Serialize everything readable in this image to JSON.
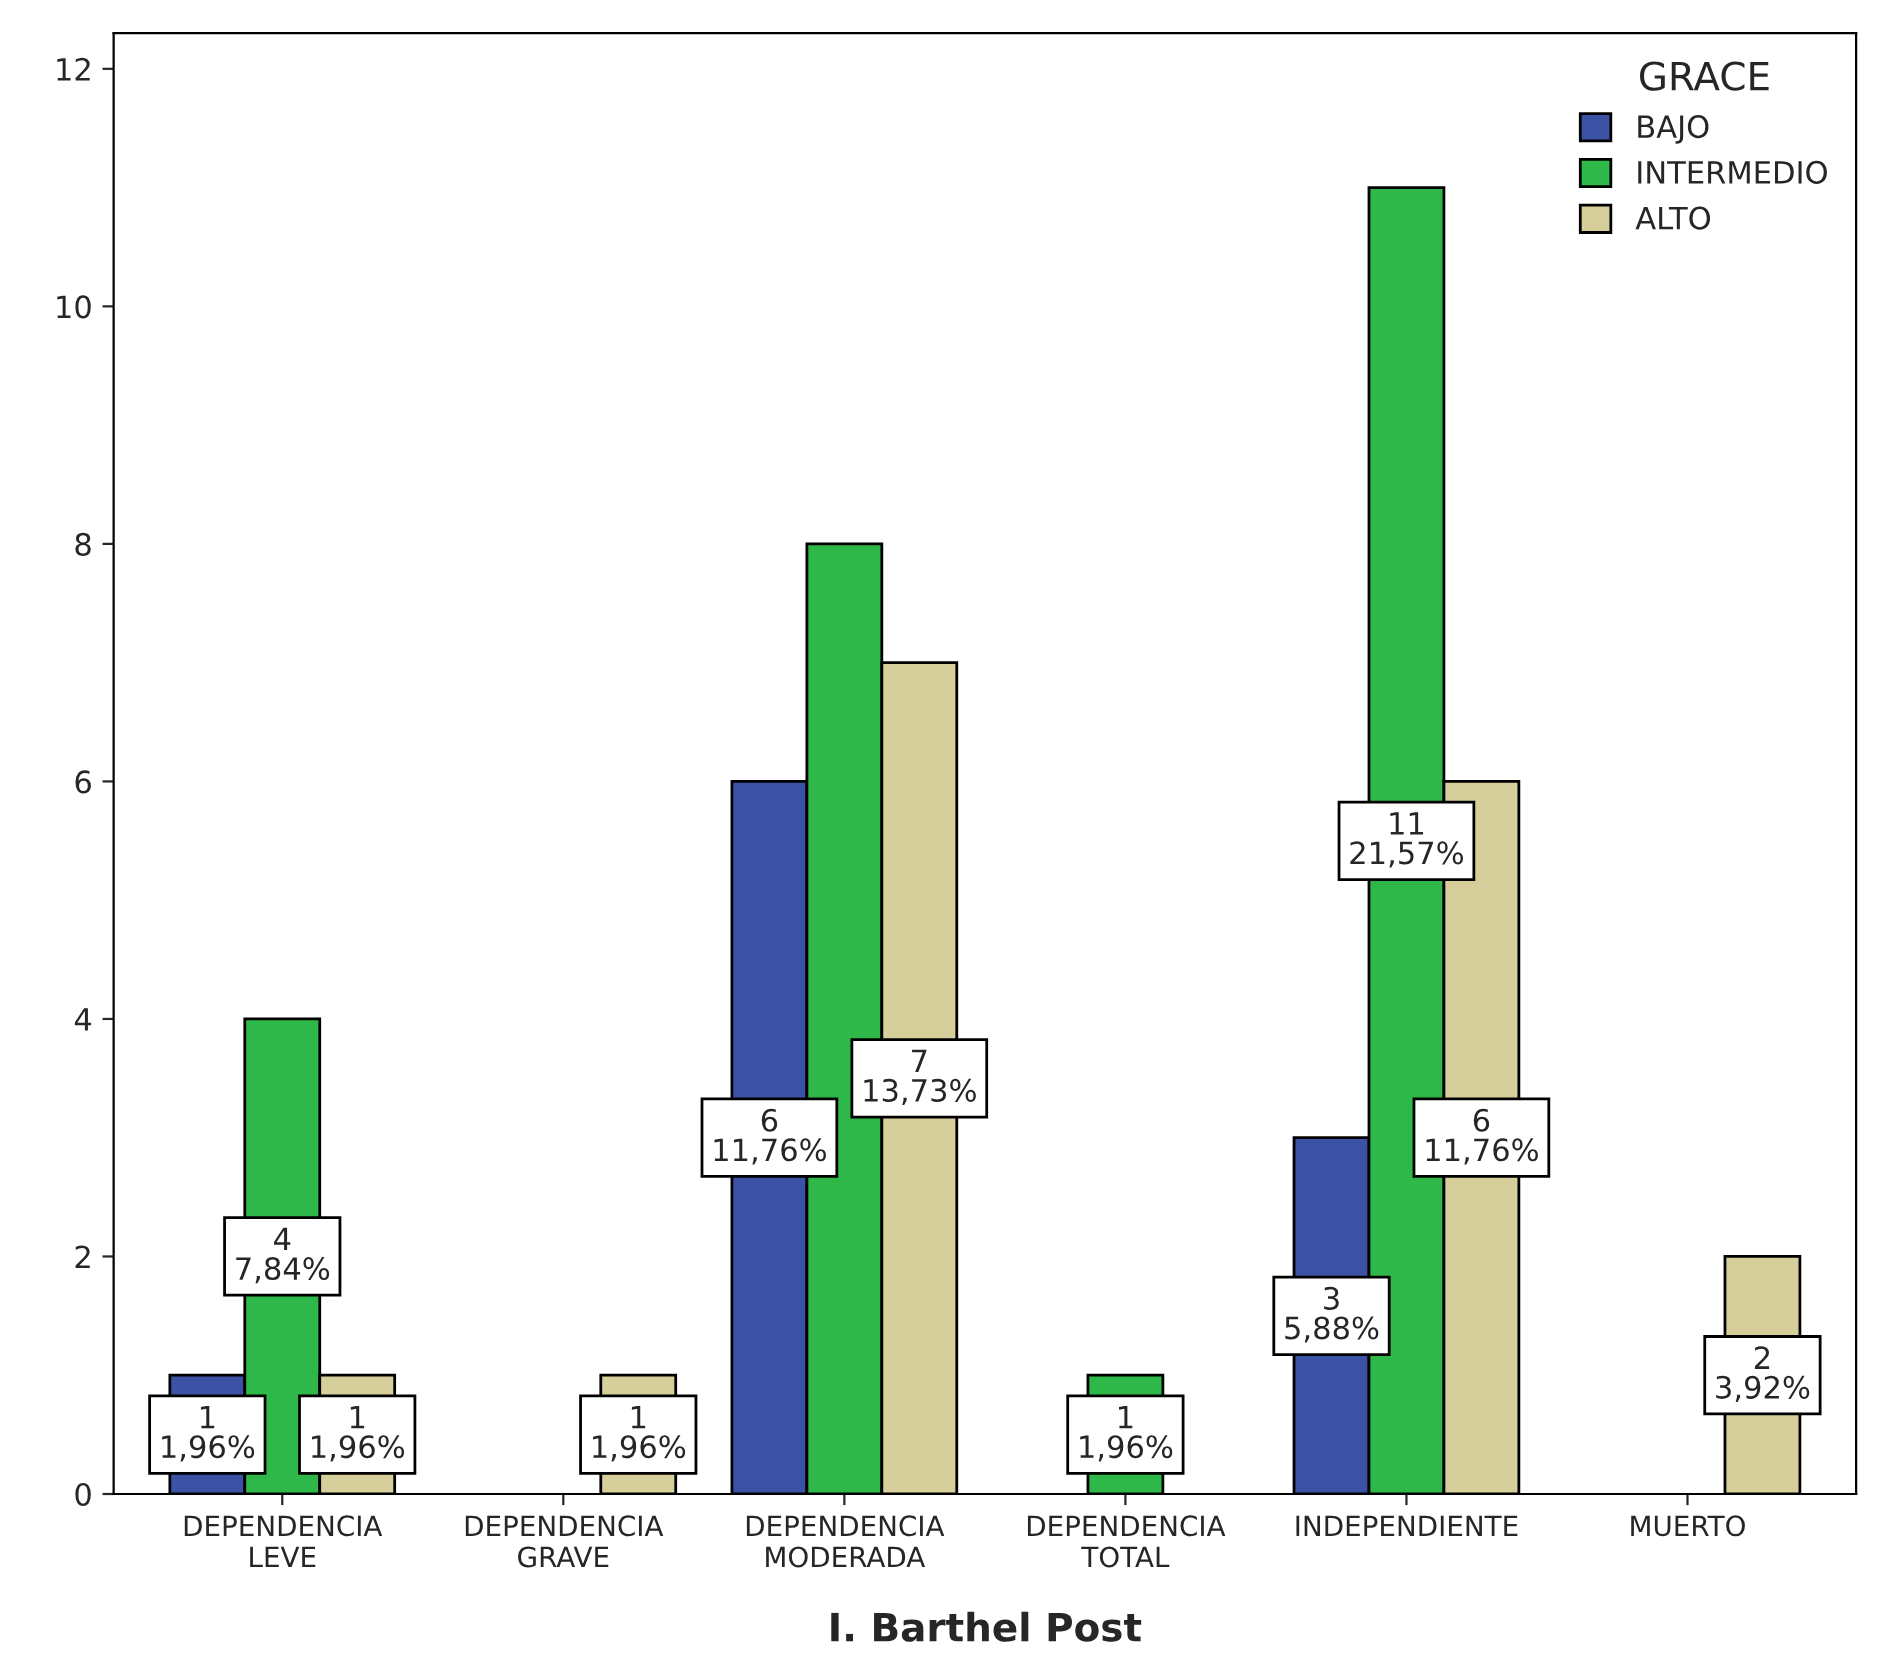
{
  "chart_data": {
    "type": "bar",
    "xlabel": "I. Barthel Post",
    "legend_title": "GRACE",
    "legend": "top right",
    "grid": false,
    "categories": [
      "DEPENDENCIA\nLEVE",
      "DEPENDENCIA\nGRAVE",
      "DEPENDENCIA\nMODERADA",
      "DEPENDENCIA\nTOTAL",
      "INDEPENDIENTE",
      "MUERTO"
    ],
    "ylim": [
      0,
      12.3
    ],
    "yticks": [
      0,
      2,
      4,
      6,
      8,
      10,
      12
    ],
    "series": [
      {
        "name": "BAJO",
        "color": "#3c52a4",
        "values": [
          1,
          null,
          6,
          null,
          3,
          null
        ],
        "value_labels": [
          "1\n1,96%",
          null,
          "6\n11,76%",
          null,
          "3\n5,88%",
          null
        ]
      },
      {
        "name": "INTERMEDIO",
        "color": "#2fb84a",
        "values": [
          4,
          null,
          8,
          1,
          11,
          null
        ],
        "value_labels": [
          "4\n7,84%",
          null,
          null,
          "1\n1,96%",
          "11\n21,57%",
          null
        ]
      },
      {
        "name": "ALTO",
        "color": "#d6cf9c",
        "values": [
          1,
          1,
          7,
          null,
          6,
          2
        ],
        "value_labels": [
          "1\n1,96%",
          "1\n1,96%",
          "7\n13,73%",
          null,
          "6\n11,76%",
          "2\n3,92%"
        ]
      }
    ]
  }
}
